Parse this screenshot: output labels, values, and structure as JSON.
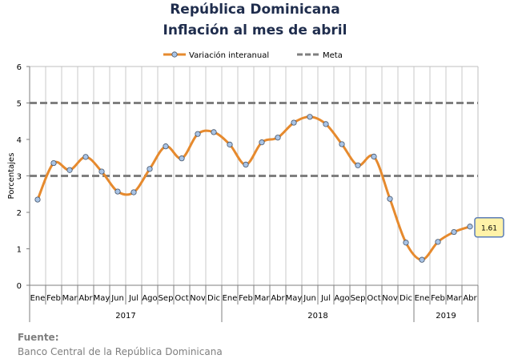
{
  "title": "República Dominicana",
  "subtitle": "Inflación al mes de abril",
  "source": {
    "label": "Fuente:",
    "text": "Banco Central de la República Dominicana"
  },
  "chart_data": {
    "type": "line",
    "ylabel": "Porcentajes",
    "ylim": [
      0,
      6
    ],
    "yticks": [
      0,
      1,
      2,
      3,
      4,
      5,
      6
    ],
    "grid": "vertical",
    "legend_position": "top",
    "categories": [
      "Ene",
      "Feb",
      "Mar",
      "Abr",
      "May",
      "Jun",
      "Jul",
      "Ago",
      "Sep",
      "Oct",
      "Nov",
      "Dic",
      "Ene",
      "Feb",
      "Mar",
      "Abr",
      "May",
      "Jun",
      "Jul",
      "Ago",
      "Sep",
      "Oct",
      "Nov",
      "Dic",
      "Ene",
      "Feb",
      "Mar",
      "Abr"
    ],
    "year_groups": [
      {
        "label": "2017",
        "count": 12
      },
      {
        "label": "2018",
        "count": 12
      },
      {
        "label": "2019",
        "count": 4
      }
    ],
    "series": [
      {
        "name": "Variación interanual",
        "color": "#e68a2e",
        "marker_color": "#a9c4e6",
        "values": [
          2.35,
          3.35,
          3.16,
          3.52,
          3.12,
          2.57,
          2.55,
          3.19,
          3.81,
          3.48,
          4.15,
          4.2,
          3.86,
          3.31,
          3.92,
          4.05,
          4.46,
          4.62,
          4.42,
          3.87,
          3.29,
          3.53,
          2.37,
          1.17,
          0.7,
          1.19,
          1.46,
          1.61
        ]
      },
      {
        "name": "Meta",
        "color": "#7f7f7f",
        "bands": [
          3,
          5
        ]
      }
    ],
    "annotation": {
      "label": "1.61",
      "background": "#fff2a8",
      "border": "#5b7db8"
    }
  }
}
